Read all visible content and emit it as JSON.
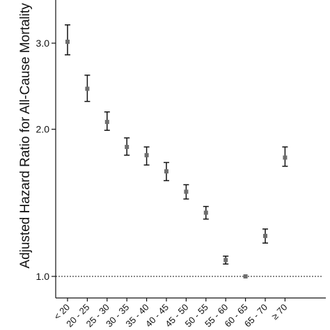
{
  "chart_data": {
    "type": "scatter",
    "ylabel": "Adjusted Hazard Ratio for All-Cause Mortality",
    "y_scale": "log",
    "ylim": [
      0.9,
      3.65
    ],
    "reference_line": {
      "y": 1.0,
      "style": "dotted"
    },
    "grid": false,
    "y_ticks": [
      {
        "value": 1.0,
        "label": "1.0"
      },
      {
        "value": 2.0,
        "label": "2.0"
      },
      {
        "value": 3.0,
        "label": "3.0"
      }
    ],
    "categories": [
      "< 20",
      "20 - 25",
      "25 - 30",
      "30 - 35",
      "35 - 40",
      "40 - 45",
      "45 - 50",
      "50 - 55",
      "55 - 60",
      "60 - 65",
      "65 - 70",
      "≥ 70"
    ],
    "series": [
      {
        "values": [
          3.02,
          2.42,
          2.07,
          1.84,
          1.77,
          1.64,
          1.49,
          1.35,
          1.08,
          1.0,
          1.21,
          1.75
        ],
        "lower": [
          2.84,
          2.28,
          1.99,
          1.77,
          1.69,
          1.57,
          1.44,
          1.31,
          1.06,
          1.0,
          1.17,
          1.68
        ],
        "upper": [
          3.27,
          2.58,
          2.17,
          1.92,
          1.84,
          1.71,
          1.54,
          1.39,
          1.1,
          1.0,
          1.25,
          1.84
        ]
      }
    ],
    "colors": {
      "marker": "#6e6e6e",
      "errorbar": "#111111",
      "axis": "#111111",
      "reference_line": "#111111"
    }
  }
}
